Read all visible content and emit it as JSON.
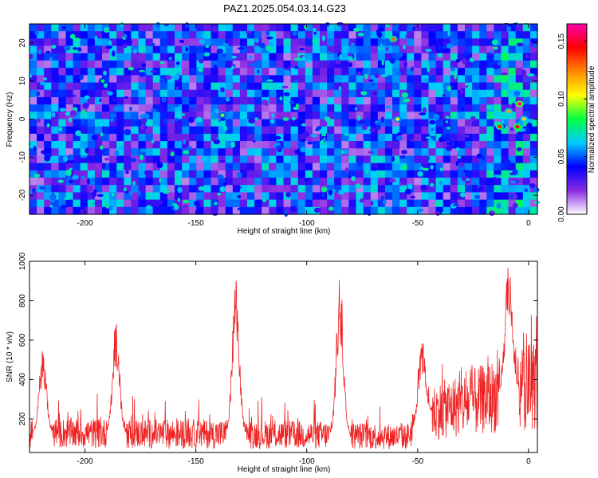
{
  "figure_title": "PAZ1.2025.054.03.14.G23",
  "chart_data": [
    {
      "type": "heatmap",
      "title": "PAZ1.2025.054.03.14.G23",
      "xlabel": "Height of straight line (km)",
      "ylabel": "Frequency (Hz)",
      "xlim": [
        -225,
        4
      ],
      "ylim": [
        -25,
        25
      ],
      "x_ticks": [
        -200,
        -150,
        -100,
        -50,
        0
      ],
      "y_ticks": [
        -20,
        -10,
        0,
        10,
        20
      ],
      "colorbar": {
        "label": "Normalized spectral amplitude",
        "range": [
          0,
          0.165
        ],
        "ticks": [
          "0.00",
          "0.05",
          "0.10",
          "0.15"
        ],
        "colormap": [
          "#ffffff",
          "#8a2be2",
          "#0000ff",
          "#00ccff",
          "#00ff44",
          "#ffff00",
          "#ff8800",
          "#ff0000",
          "#ff00aa"
        ]
      },
      "hotspots": [
        {
          "x": -4,
          "y": 4,
          "value": 0.16
        },
        {
          "x": -5,
          "y": -2,
          "value": 0.15
        },
        {
          "x": -13,
          "y": -2,
          "value": 0.14
        },
        {
          "x": -9,
          "y": 2,
          "value": 0.12
        },
        {
          "x": -2,
          "y": 0,
          "value": 0.11
        },
        {
          "x": -61,
          "y": 21,
          "value": 0.13
        },
        {
          "x": -59,
          "y": 0,
          "value": 0.1
        },
        {
          "x": -138,
          "y": 1,
          "value": 0.09
        },
        {
          "x": -192,
          "y": 10,
          "value": 0.08
        }
      ],
      "background_level": 0.04
    },
    {
      "type": "line",
      "xlabel": "Height of straight line (km)",
      "ylabel": "SNR (10 * v/v)",
      "xlim": [
        -225,
        4
      ],
      "ylim": [
        30,
        1000
      ],
      "x_ticks": [
        -200,
        -150,
        -100,
        -50,
        0
      ],
      "y_ticks": [
        200,
        400,
        600,
        800,
        1000
      ],
      "series_color": "#ee2222",
      "baseline": [
        {
          "x": -225,
          "y": 130
        },
        {
          "x": -100,
          "y": 120
        },
        {
          "x": -55,
          "y": 110
        },
        {
          "x": -45,
          "y": 230
        },
        {
          "x": -20,
          "y": 300
        },
        {
          "x": 4,
          "y": 380
        }
      ],
      "peaks": [
        {
          "x": -219,
          "y": 560
        },
        {
          "x": -186,
          "y": 700
        },
        {
          "x": -132,
          "y": 910
        },
        {
          "x": -85,
          "y": 950
        },
        {
          "x": -48,
          "y": 610
        },
        {
          "x": -9,
          "y": 1000
        }
      ]
    }
  ]
}
